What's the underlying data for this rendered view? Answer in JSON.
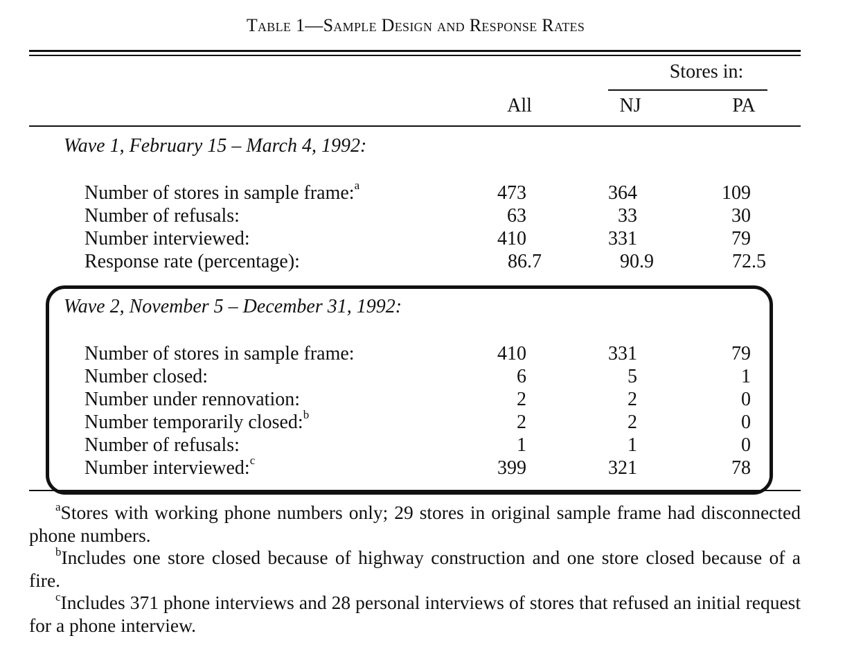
{
  "title": "Table 1—Sample Design and Response Rates",
  "header": {
    "stores_in": "Stores in:",
    "col_all": "All",
    "col_nj": "NJ",
    "col_pa": "PA"
  },
  "wave1": {
    "title": "Wave 1, February 15 – March 4, 1992:",
    "rows": [
      {
        "label": "Number of stores in sample frame:",
        "sup": "a",
        "all": "473",
        "nj": "364",
        "pa": "109"
      },
      {
        "label": "Number of refusals:",
        "sup": "",
        "all": "63",
        "nj": "33",
        "pa": "30"
      },
      {
        "label": "Number interviewed:",
        "sup": "",
        "all": "410",
        "nj": "331",
        "pa": "79"
      },
      {
        "label": "Response rate (percentage):",
        "sup": "",
        "all": "86.7",
        "nj": "90.9",
        "pa": "72.5"
      }
    ]
  },
  "wave2": {
    "title": "Wave 2, November 5 – December 31, 1992:",
    "rows": [
      {
        "label": "Number of stores in sample frame:",
        "sup": "",
        "all": "410",
        "nj": "331",
        "pa": "79"
      },
      {
        "label": "Number closed:",
        "sup": "",
        "all": "6",
        "nj": "5",
        "pa": "1"
      },
      {
        "label": "Number under rennovation:",
        "sup": "",
        "all": "2",
        "nj": "2",
        "pa": "0"
      },
      {
        "label": "Number temporarily closed:",
        "sup": "b",
        "all": "2",
        "nj": "2",
        "pa": "0"
      },
      {
        "label": "Number of refusals:",
        "sup": "",
        "all": "1",
        "nj": "1",
        "pa": "0"
      },
      {
        "label": "Number interviewed:",
        "sup": "c",
        "all": "399",
        "nj": "321",
        "pa": "78"
      }
    ]
  },
  "footnotes": [
    {
      "mark": "a",
      "text": "Stores with working phone numbers only; 29 stores in original sample frame had disconnected phone numbers."
    },
    {
      "mark": "b",
      "text": "Includes one store closed because of highway construction and one store closed because of a fire."
    },
    {
      "mark": "c",
      "text": "Includes 371 phone interviews and 28 personal interviews of stores that refused an initial request for a phone interview."
    }
  ]
}
